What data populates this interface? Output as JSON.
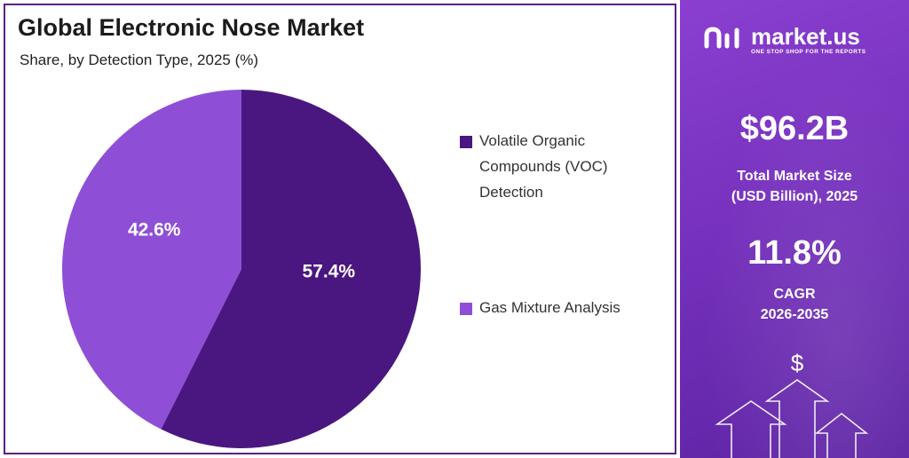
{
  "title": "Global Electronic Nose Market",
  "subtitle_prefix": "Share, by ",
  "subtitle_bold": "Detection Type",
  "subtitle_suffix": ", 2025 (%)",
  "chart_data": {
    "type": "pie",
    "title": "Global Electronic Nose Market",
    "subtitle": "Share, by Detection Type, 2025 (%)",
    "slices": [
      {
        "name": "Volatile Organic Compounds (VOC) Detection",
        "value": 57.4,
        "label": "57.4%",
        "color": "#4a1780"
      },
      {
        "name": "Gas Mixture Analysis",
        "value": 42.6,
        "label": "42.6%",
        "color": "#8e4fd6"
      }
    ],
    "legend_position": "right"
  },
  "legend": {
    "voc_line1": "Volatile Organic",
    "voc_line2": "Compounds (VOC)",
    "voc_line3": "Detection",
    "gas": "Gas Mixture Analysis"
  },
  "brand": {
    "name": "market.us",
    "tagline": "ONE STOP SHOP FOR THE REPORTS"
  },
  "stats": {
    "market_size_value": "$96.2B",
    "market_size_label_1": "Total Market Size",
    "market_size_label_2": "(USD Billion), 2025",
    "cagr_value": "11.8%",
    "cagr_label_1": "CAGR",
    "cagr_label_2": "2026-2035"
  },
  "icons": {
    "dollar": "$"
  },
  "colors": {
    "panel": "#7a34c4",
    "border": "#5b1f86",
    "dark_slice": "#4a1780",
    "light_slice": "#8e4fd6"
  }
}
